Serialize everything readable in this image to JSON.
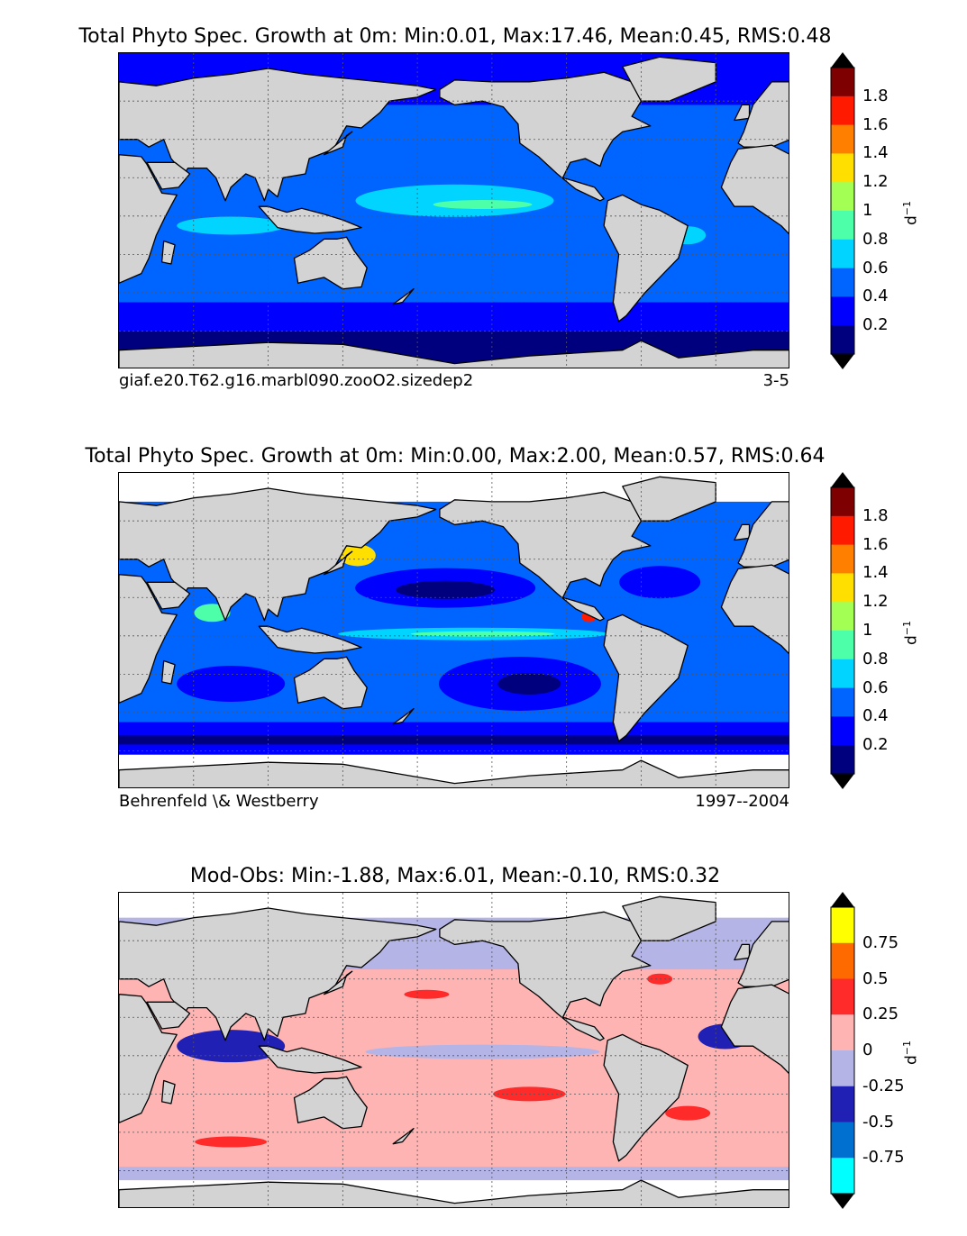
{
  "panels": [
    {
      "title": "Total Phyto Spec. Growth at 0m: Min:0.01, Max:17.46, Mean:0.45, RMS:0.48",
      "footer_left": "giaf.e20.T62.g16.marbl090.zooO2.sizedep2",
      "footer_right": "3-5",
      "colorbar": {
        "ticks": [
          "1.8",
          "1.6",
          "1.4",
          "1.2",
          "1",
          "0.8",
          "0.6",
          "0.4",
          "0.2"
        ],
        "colors": [
          "#7f0000",
          "#ff1a00",
          "#ff7f00",
          "#ffdf00",
          "#a4ff54",
          "#4cffa8",
          "#00d4ff",
          "#0064ff",
          "#0000ff",
          "#00007f"
        ],
        "over": "#000000",
        "under": "#000000",
        "unit": "d",
        "unit_exp": "−1"
      },
      "ocean_colors": [
        "#00007f",
        "#0000ff",
        "#0064ff",
        "#00d4ff",
        "#4cffa8"
      ]
    },
    {
      "title": "Total Phyto Spec. Growth at 0m: Min:0.00, Max:2.00, Mean:0.57, RMS:0.64",
      "footer_left": "Behrenfeld \\& Westberry",
      "footer_right": "1997--2004",
      "colorbar": {
        "ticks": [
          "1.8",
          "1.6",
          "1.4",
          "1.2",
          "1",
          "0.8",
          "0.6",
          "0.4",
          "0.2"
        ],
        "colors": [
          "#7f0000",
          "#ff1a00",
          "#ff7f00",
          "#ffdf00",
          "#a4ff54",
          "#4cffa8",
          "#00d4ff",
          "#0064ff",
          "#0000ff",
          "#00007f"
        ],
        "over": "#000000",
        "under": "#000000",
        "unit": "d",
        "unit_exp": "−1"
      },
      "ocean_colors": [
        "#00007f",
        "#0000ff",
        "#0064ff",
        "#00d4ff",
        "#4cffa8",
        "#ffdf00",
        "#ff7f00",
        "#ff1a00"
      ]
    },
    {
      "title": "Mod-Obs: Min:-1.88, Max:6.01, Mean:-0.10, RMS:0.32",
      "footer_left": "",
      "footer_right": "",
      "colorbar": {
        "ticks": [
          "0.75",
          "0.5",
          "0.25",
          "0",
          "-0.25",
          "-0.5",
          "-0.75"
        ],
        "colors": [
          "#ffff00",
          "#ff6a00",
          "#ff2a2a",
          "#ffb4b4",
          "#b4b4e6",
          "#2020b4",
          "#0070d0",
          "#00ffff"
        ],
        "over": "#000000",
        "under": "#000000",
        "unit": "d",
        "unit_exp": "−1"
      },
      "ocean_colors": [
        "#ffb4b4",
        "#b4b4e6",
        "#2020b4",
        "#ff2a2a",
        "#0070d0",
        "#00ffff"
      ]
    }
  ]
}
